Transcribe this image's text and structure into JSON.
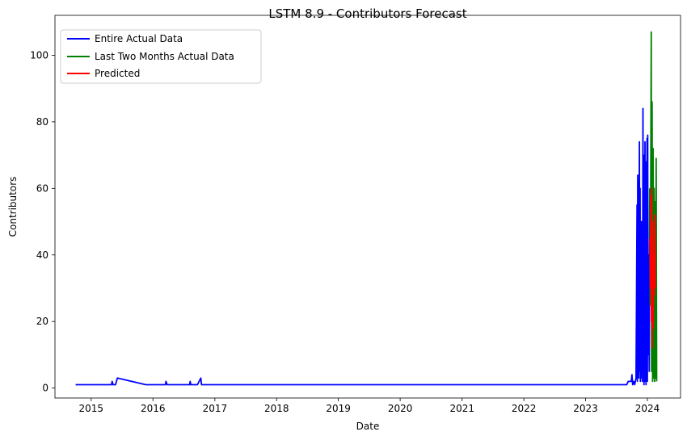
{
  "chart_data": {
    "type": "line",
    "title": "LSTM 8.9 - Contributors Forecast",
    "xlabel": "Date",
    "ylabel": "Contributors",
    "xlim": [
      "2014-06-01",
      "2024-07-15"
    ],
    "ylim": [
      -3,
      112
    ],
    "x_ticks": [
      "2015",
      "2016",
      "2017",
      "2018",
      "2019",
      "2020",
      "2021",
      "2022",
      "2023",
      "2024"
    ],
    "y_ticks": [
      "0",
      "20",
      "40",
      "60",
      "80",
      "100"
    ],
    "grid": false,
    "legend_position": "top-left",
    "series": [
      {
        "name": "Entire Actual Data",
        "color": "#0000ff",
        "points": [
          [
            "2014-10-01",
            1
          ],
          [
            "2015-05-01",
            1
          ],
          [
            "2015-05-05",
            2
          ],
          [
            "2015-05-10",
            1
          ],
          [
            "2015-05-25",
            1
          ],
          [
            "2015-06-05",
            3
          ],
          [
            "2015-11-20",
            1
          ],
          [
            "2016-03-15",
            1
          ],
          [
            "2016-03-18",
            2
          ],
          [
            "2016-03-25",
            1
          ],
          [
            "2016-08-05",
            1
          ],
          [
            "2016-08-08",
            2
          ],
          [
            "2016-08-12",
            1
          ],
          [
            "2016-09-20",
            1
          ],
          [
            "2016-10-10",
            3
          ],
          [
            "2016-10-14",
            1
          ],
          [
            "2023-09-01",
            1
          ],
          [
            "2023-09-10",
            2
          ],
          [
            "2023-09-28",
            2
          ],
          [
            "2023-10-02",
            4
          ],
          [
            "2023-10-06",
            1
          ],
          [
            "2023-10-12",
            2
          ],
          [
            "2023-10-18",
            1
          ],
          [
            "2023-10-26",
            3
          ],
          [
            "2023-11-01",
            55
          ],
          [
            "2023-11-03",
            2
          ],
          [
            "2023-11-05",
            64
          ],
          [
            "2023-11-07",
            10
          ],
          [
            "2023-11-09",
            62
          ],
          [
            "2023-11-11",
            3
          ],
          [
            "2023-11-13",
            48
          ],
          [
            "2023-11-15",
            74
          ],
          [
            "2023-11-17",
            5
          ],
          [
            "2023-11-19",
            60
          ],
          [
            "2023-11-21",
            2
          ],
          [
            "2023-11-23",
            40
          ],
          [
            "2023-11-25",
            8
          ],
          [
            "2023-11-27",
            50
          ],
          [
            "2023-11-29",
            3
          ],
          [
            "2023-12-01",
            30
          ],
          [
            "2023-12-03",
            2
          ],
          [
            "2023-12-06",
            84
          ],
          [
            "2023-12-08",
            5
          ],
          [
            "2023-12-10",
            70
          ],
          [
            "2023-12-12",
            1
          ],
          [
            "2023-12-14",
            45
          ],
          [
            "2023-12-16",
            3
          ],
          [
            "2023-12-18",
            74
          ],
          [
            "2023-12-20",
            2
          ],
          [
            "2023-12-22",
            60
          ],
          [
            "2023-12-24",
            1
          ],
          [
            "2023-12-26",
            68
          ],
          [
            "2023-12-28",
            5
          ],
          [
            "2023-12-30",
            75
          ],
          [
            "2024-01-01",
            2
          ],
          [
            "2024-01-03",
            76
          ],
          [
            "2024-01-05",
            10
          ],
          [
            "2024-01-08",
            40
          ],
          [
            "2024-01-12",
            5
          ],
          [
            "2024-01-15",
            60
          ]
        ]
      },
      {
        "name": "Last Two Months Actual Data",
        "color": "#008000",
        "points": [
          [
            "2024-01-15",
            60
          ],
          [
            "2024-01-18",
            25
          ],
          [
            "2024-01-21",
            65
          ],
          [
            "2024-01-24",
            107
          ],
          [
            "2024-01-26",
            5
          ],
          [
            "2024-01-29",
            86
          ],
          [
            "2024-02-01",
            2
          ],
          [
            "2024-02-04",
            72
          ],
          [
            "2024-02-07",
            3
          ],
          [
            "2024-02-10",
            60
          ],
          [
            "2024-02-13",
            2
          ],
          [
            "2024-02-16",
            56
          ],
          [
            "2024-02-19",
            3
          ],
          [
            "2024-02-22",
            69
          ],
          [
            "2024-02-25",
            2
          ]
        ]
      },
      {
        "name": "Predicted",
        "color": "#ff0000",
        "points": [
          [
            "2024-01-16",
            45
          ],
          [
            "2024-01-19",
            30
          ],
          [
            "2024-01-22",
            58
          ],
          [
            "2024-01-25",
            20
          ],
          [
            "2024-01-27",
            60
          ],
          [
            "2024-01-30",
            12
          ],
          [
            "2024-02-02",
            50
          ],
          [
            "2024-02-05",
            18
          ],
          [
            "2024-02-08",
            40
          ],
          [
            "2024-02-11",
            28
          ],
          [
            "2024-02-14",
            52
          ],
          [
            "2024-02-17",
            30
          ]
        ]
      }
    ]
  }
}
